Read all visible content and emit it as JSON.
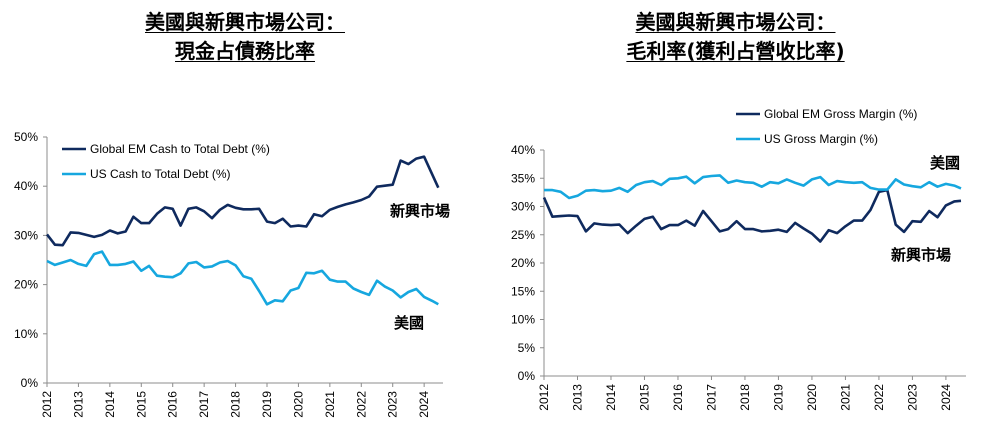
{
  "charts": {
    "left": {
      "title_lines": [
        "美國與新興市場公司：",
        "現金占債務比率"
      ],
      "legend": [
        "Global EM Cash to Total Debt (%)",
        "US Cash to Total Debt (%)"
      ],
      "annotations": [
        "新興市場",
        "美國"
      ]
    },
    "right": {
      "title_lines": [
        "美國與新興市場公司：",
        "毛利率(獲利占營收比率)"
      ],
      "legend": [
        "Global EM Gross Margin (%)",
        "US Gross Margin (%)"
      ],
      "annotations": [
        "美國",
        "新興市場"
      ]
    }
  },
  "colors": {
    "navy": "#0f2a5e",
    "light_blue": "#16a7df",
    "axis": "#8c8c8c"
  },
  "chart_data": [
    {
      "type": "line",
      "title": "美國與新興市場公司：現金占債務比率",
      "ylim": [
        0,
        50
      ],
      "yticks": [
        "0%",
        "10%",
        "20%",
        "30%",
        "40%",
        "50%"
      ],
      "xlim": [
        2012,
        2024.6
      ],
      "xticks": [
        "2012",
        "2013",
        "2014",
        "2015",
        "2016",
        "2017",
        "2018",
        "2019",
        "2020",
        "2021",
        "2022",
        "2023",
        "2024"
      ],
      "grid": false,
      "legend_position": "top-left",
      "series": [
        {
          "name": "Global EM Cash to Total Debt (%)",
          "x": [
            2012.0,
            2012.25,
            2012.5,
            2012.75,
            2013.0,
            2013.25,
            2013.5,
            2013.75,
            2014.0,
            2014.25,
            2014.5,
            2014.75,
            2015.0,
            2015.25,
            2015.5,
            2015.75,
            2016.0,
            2016.25,
            2016.5,
            2016.75,
            2017.0,
            2017.25,
            2017.5,
            2017.75,
            2018.0,
            2018.25,
            2018.5,
            2018.75,
            2019.0,
            2019.25,
            2019.5,
            2019.75,
            2020.0,
            2020.25,
            2020.5,
            2020.75,
            2021.0,
            2021.25,
            2021.5,
            2021.75,
            2022.0,
            2022.25,
            2022.5,
            2022.75,
            2023.0,
            2023.25,
            2023.5,
            2023.75,
            2024.0,
            2024.25,
            2024.45
          ],
          "values": [
            30.2,
            28.1,
            28.0,
            30.6,
            30.5,
            30.1,
            29.7,
            30.1,
            31.0,
            30.4,
            30.8,
            33.8,
            32.5,
            32.5,
            34.4,
            35.7,
            35.4,
            32.0,
            35.4,
            35.7,
            34.9,
            33.5,
            35.2,
            36.2,
            35.6,
            35.3,
            35.3,
            35.4,
            32.8,
            32.5,
            33.4,
            31.8,
            32.0,
            31.8,
            34.3,
            33.9,
            35.2,
            35.8,
            36.3,
            36.7,
            37.2,
            37.9,
            39.9,
            40.1,
            40.3,
            45.2,
            44.5,
            45.6,
            46.0,
            42.5,
            39.7
          ]
        },
        {
          "name": "US Cash to Total Debt (%)",
          "x": [
            2012.0,
            2012.25,
            2012.5,
            2012.75,
            2013.0,
            2013.25,
            2013.5,
            2013.75,
            2014.0,
            2014.25,
            2014.5,
            2014.75,
            2015.0,
            2015.25,
            2015.5,
            2015.75,
            2016.0,
            2016.25,
            2016.5,
            2016.75,
            2017.0,
            2017.25,
            2017.5,
            2017.75,
            2018.0,
            2018.25,
            2018.5,
            2018.75,
            2019.0,
            2019.25,
            2019.5,
            2019.75,
            2020.0,
            2020.25,
            2020.5,
            2020.75,
            2021.0,
            2021.25,
            2021.5,
            2021.75,
            2022.0,
            2022.25,
            2022.5,
            2022.75,
            2023.0,
            2023.25,
            2023.5,
            2023.75,
            2024.0,
            2024.25,
            2024.45
          ],
          "values": [
            24.8,
            24.0,
            24.5,
            25.0,
            24.2,
            23.8,
            26.2,
            26.7,
            24.0,
            24.0,
            24.2,
            24.7,
            22.8,
            23.8,
            21.8,
            21.6,
            21.5,
            22.3,
            24.3,
            24.6,
            23.5,
            23.7,
            24.5,
            24.8,
            23.9,
            21.7,
            21.2,
            18.7,
            16.0,
            16.8,
            16.6,
            18.8,
            19.3,
            22.4,
            22.3,
            22.8,
            21.0,
            20.6,
            20.6,
            19.2,
            18.5,
            17.9,
            20.8,
            19.6,
            18.8,
            17.4,
            18.5,
            19.1,
            17.5,
            16.7,
            16.0
          ]
        }
      ]
    },
    {
      "type": "line",
      "title": "美國與新興市場公司：毛利率(獲利占營收比率)",
      "ylim": [
        0,
        40
      ],
      "yticks": [
        "0%",
        "5%",
        "10%",
        "15%",
        "20%",
        "25%",
        "30%",
        "35%",
        "40%"
      ],
      "xlim": [
        2012,
        2024.6
      ],
      "xticks": [
        "2012",
        "2013",
        "2014",
        "2015",
        "2016",
        "2017",
        "2018",
        "2019",
        "2020",
        "2021",
        "2022",
        "2023",
        "2024"
      ],
      "grid": false,
      "legend_position": "top-left",
      "series": [
        {
          "name": "Global EM Gross Margin (%)",
          "x": [
            2012.0,
            2012.25,
            2012.5,
            2012.75,
            2013.0,
            2013.25,
            2013.5,
            2013.75,
            2014.0,
            2014.25,
            2014.5,
            2014.75,
            2015.0,
            2015.25,
            2015.5,
            2015.75,
            2016.0,
            2016.25,
            2016.5,
            2016.75,
            2017.0,
            2017.25,
            2017.5,
            2017.75,
            2018.0,
            2018.25,
            2018.5,
            2018.75,
            2019.0,
            2019.25,
            2019.5,
            2019.75,
            2020.0,
            2020.25,
            2020.5,
            2020.75,
            2021.0,
            2021.25,
            2021.5,
            2021.75,
            2022.0,
            2022.25,
            2022.5,
            2022.75,
            2023.0,
            2023.25,
            2023.5,
            2023.75,
            2024.0,
            2024.25,
            2024.45
          ],
          "values": [
            31.6,
            28.2,
            28.3,
            28.4,
            28.3,
            25.6,
            27.0,
            26.8,
            26.7,
            26.8,
            25.3,
            26.6,
            27.8,
            28.2,
            26.0,
            26.7,
            26.7,
            27.5,
            26.6,
            29.2,
            27.4,
            25.6,
            26.0,
            27.4,
            26.0,
            26.0,
            25.6,
            25.7,
            25.9,
            25.5,
            27.1,
            26.1,
            25.2,
            23.8,
            25.8,
            25.3,
            26.5,
            27.5,
            27.5,
            29.4,
            32.6,
            32.9,
            26.8,
            25.5,
            27.4,
            27.3,
            29.2,
            28.1,
            30.2,
            30.9,
            31.0
          ]
        },
        {
          "name": "US Gross Margin (%)",
          "x": [
            2012.0,
            2012.25,
            2012.5,
            2012.75,
            2013.0,
            2013.25,
            2013.5,
            2013.75,
            2014.0,
            2014.25,
            2014.5,
            2014.75,
            2015.0,
            2015.25,
            2015.5,
            2015.75,
            2016.0,
            2016.25,
            2016.5,
            2016.75,
            2017.0,
            2017.25,
            2017.5,
            2017.75,
            2018.0,
            2018.25,
            2018.5,
            2018.75,
            2019.0,
            2019.25,
            2019.5,
            2019.75,
            2020.0,
            2020.25,
            2020.5,
            2020.75,
            2021.0,
            2021.25,
            2021.5,
            2021.75,
            2022.0,
            2022.25,
            2022.5,
            2022.75,
            2023.0,
            2023.25,
            2023.5,
            2023.75,
            2024.0,
            2024.25,
            2024.45
          ],
          "values": [
            32.9,
            32.9,
            32.6,
            31.5,
            31.9,
            32.8,
            32.9,
            32.7,
            32.8,
            33.3,
            32.6,
            33.8,
            34.3,
            34.5,
            33.8,
            34.9,
            35.0,
            35.3,
            34.1,
            35.2,
            35.4,
            35.5,
            34.2,
            34.6,
            34.3,
            34.2,
            33.5,
            34.3,
            34.1,
            34.8,
            34.2,
            33.7,
            34.8,
            35.2,
            33.8,
            34.5,
            34.3,
            34.2,
            34.3,
            33.3,
            33.0,
            33.0,
            34.8,
            33.9,
            33.6,
            33.4,
            34.3,
            33.5,
            34.0,
            33.7,
            33.2
          ]
        }
      ]
    }
  ]
}
